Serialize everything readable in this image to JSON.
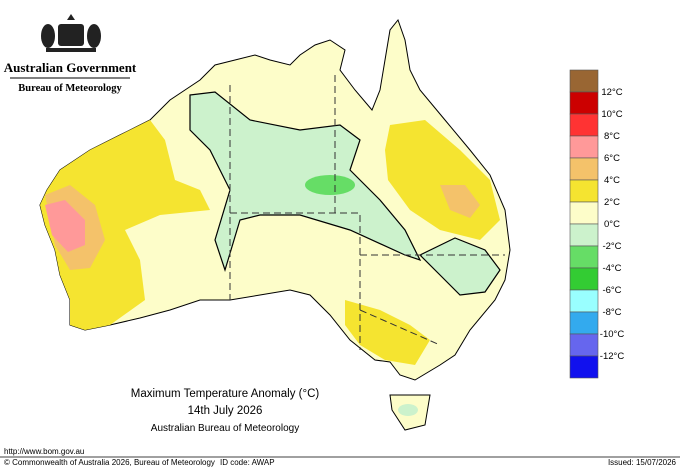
{
  "header": {
    "government": "Australian Government",
    "bureau": "Bureau of Meteorology"
  },
  "map": {
    "title": "Maximum Temperature Anomaly (°C)",
    "date": "14th July 2026",
    "source": "Australian Bureau of Meteorology"
  },
  "legend": {
    "labels": [
      "12°C",
      "10°C",
      "8°C",
      "6°C",
      "4°C",
      "2°C",
      "0°C",
      "-2°C",
      "-4°C",
      "-6°C",
      "-8°C",
      "-10°C",
      "-12°C"
    ],
    "colors": [
      "#996633",
      "#cc0000",
      "#ff3333",
      "#ff9999",
      "#f4c26a",
      "#f5e430",
      "#fdfdc9",
      "#ccf2cc",
      "#66dd66",
      "#33cc33",
      "#99ffff",
      "#33aaee",
      "#6666ee",
      "#1111ee"
    ]
  },
  "footer": {
    "url": "http://www.bom.gov.au",
    "copyright": "© Commonwealth of Australia 2026, Bureau of Meteorology",
    "id_code": "ID code: AWAP",
    "issued": "Issued: 15/07/2026"
  }
}
